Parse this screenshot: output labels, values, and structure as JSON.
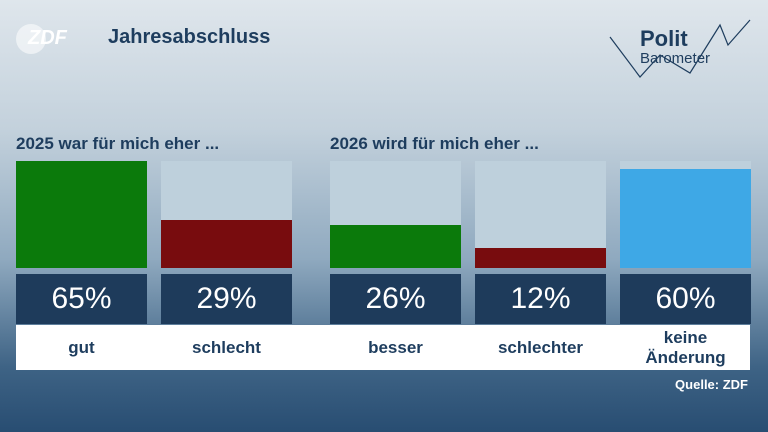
{
  "header": {
    "logo": "ZDF",
    "title": "Jahresabschluss",
    "brand_top": "Polit",
    "brand_bottom": "Barometer"
  },
  "source": "Quelle: ZDF",
  "chart_data": [
    {
      "type": "bar",
      "title": "2025 war für mich eher ...",
      "categories": [
        "gut",
        "schlecht"
      ],
      "values": [
        65,
        29
      ],
      "value_labels": [
        "65%",
        "29%"
      ],
      "colors": [
        "#0b7a0b",
        "#780c0e"
      ],
      "ylim": [
        0,
        65
      ]
    },
    {
      "type": "bar",
      "title": "2026 wird für mich eher ...",
      "categories": [
        "besser",
        "schlechter",
        "keine Änderung"
      ],
      "values": [
        26,
        12,
        60
      ],
      "value_labels": [
        "26%",
        "12%",
        "60%"
      ],
      "colors": [
        "#0b7a0b",
        "#780c0e",
        "#3ea8e6"
      ],
      "ylim": [
        0,
        65
      ]
    }
  ]
}
